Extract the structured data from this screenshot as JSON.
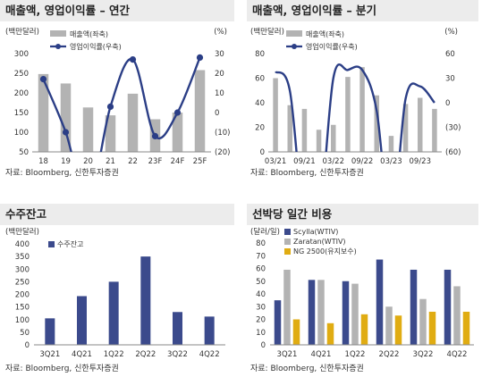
{
  "colors": {
    "bar_gray": "#b3b3b3",
    "line_navy": "#2b3e86",
    "bar_navy": "#3b4a8c",
    "scylla": "#3b4a8c",
    "zaratan": "#b3b3b3",
    "ng2500": "#e0ac12",
    "header_bg": "#ececec"
  },
  "panels": [
    {
      "title": "매출액, 영업이익률 – 연간",
      "source": "자료: Bloomberg, 신한투자증권"
    },
    {
      "title": "매출액, 영업이익률 – 분기",
      "source": "자료: Bloomberg, 신한투자증권"
    },
    {
      "title": "수주잔고",
      "source": "자료: Bloomberg, 신한투자증권"
    },
    {
      "title": "선박당 일간 비용",
      "source": "자료: Bloomberg, 신한투자증권"
    }
  ],
  "chart_data": [
    {
      "type": "bar",
      "unit_left": "(백만달러)",
      "unit_right": "(%)",
      "categories": [
        "18",
        "19",
        "20",
        "21",
        "22",
        "23F",
        "24F",
        "25F"
      ],
      "ylim": [
        50,
        300
      ],
      "yticks": [
        50,
        100,
        150,
        200,
        250,
        300
      ],
      "ylim_right": [
        -20,
        30
      ],
      "yticks_right": [
        "(20)",
        "(10)",
        "0",
        "10",
        "20",
        "30"
      ],
      "legend": [
        "매출액(좌축)",
        "영업이익률(우축)"
      ],
      "series": [
        {
          "name": "매출액(좌축)",
          "type": "bar",
          "values": [
            248,
            224,
            163,
            143,
            198,
            133,
            150,
            258
          ]
        },
        {
          "name": "영업이익률(우축)",
          "type": "line",
          "axis": "right",
          "values": [
            17,
            -10,
            -45,
            3,
            27,
            -12,
            0,
            28
          ]
        }
      ]
    },
    {
      "type": "bar",
      "unit_left": "(백만달러)",
      "unit_right": "(%)",
      "categories": [
        "03/21",
        "06/21",
        "09/21",
        "12/21",
        "03/22",
        "06/22",
        "09/22",
        "12/22",
        "03/23",
        "06/23",
        "09/23",
        "12/23"
      ],
      "xticklabels": [
        "03/21",
        "09/21",
        "03/22",
        "09/22",
        "03/23",
        "09/23"
      ],
      "ylim": [
        0,
        80
      ],
      "yticks": [
        0,
        20,
        40,
        60,
        80
      ],
      "ylim_right": [
        -60,
        60
      ],
      "yticks_right": [
        "(60)",
        "(30)",
        "0",
        "30",
        "60"
      ],
      "legend": [
        "매출액(좌축)",
        "영업이익률(우축)"
      ],
      "series": [
        {
          "name": "매출액(좌축)",
          "type": "bar",
          "values": [
            60,
            38,
            35,
            18,
            22,
            61,
            69,
            46,
            13,
            39,
            44,
            35
          ]
        },
        {
          "name": "영업이익률(우축)",
          "type": "line",
          "axis": "right",
          "values": [
            38,
            14,
            -150,
            -150,
            30,
            40,
            40,
            -10,
            -150,
            5,
            20,
            0
          ]
        }
      ]
    },
    {
      "type": "bar",
      "unit_left": "(백만달러)",
      "categories": [
        "3Q21",
        "4Q21",
        "1Q22",
        "2Q22",
        "3Q22",
        "4Q22"
      ],
      "ylim": [
        0,
        400
      ],
      "yticks": [
        0,
        50,
        100,
        150,
        200,
        250,
        300,
        350,
        400
      ],
      "legend": [
        "수주잔고"
      ],
      "series": [
        {
          "name": "수주잔고",
          "values": [
            105,
            193,
            250,
            350,
            130,
            112
          ]
        }
      ]
    },
    {
      "type": "bar",
      "unit_left": "(달러/일)",
      "categories": [
        "3Q21",
        "4Q21",
        "1Q22",
        "2Q22",
        "3Q22",
        "4Q22"
      ],
      "ylim": [
        0,
        80
      ],
      "yticks": [
        0,
        10,
        20,
        30,
        40,
        50,
        60,
        70,
        80
      ],
      "legend": [
        "Scylla(WTIV)",
        "Zaratan(WTIV)",
        "NG 2500(유지보수)"
      ],
      "series": [
        {
          "name": "Scylla(WTIV)",
          "values": [
            35,
            51,
            50,
            67,
            59,
            59
          ]
        },
        {
          "name": "Zaratan(WTIV)",
          "values": [
            59,
            51,
            48,
            30,
            36,
            46
          ]
        },
        {
          "name": "NG 2500(유지보수)",
          "values": [
            20,
            17,
            24,
            23,
            26,
            26
          ]
        }
      ]
    }
  ]
}
